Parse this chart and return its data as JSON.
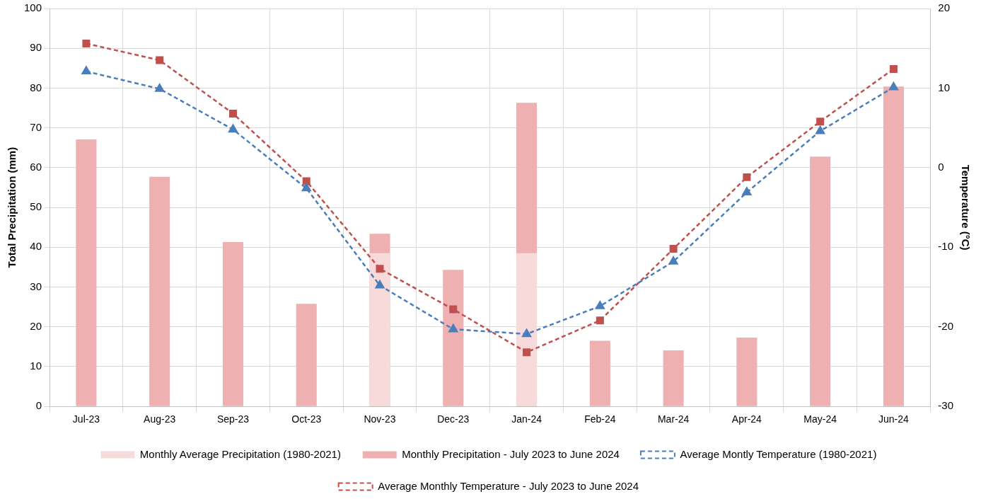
{
  "chart_data": {
    "type": "bar",
    "xlabel": null,
    "ylabel": "Total Precipitation (mm)",
    "y2label": "Temperature (°C)",
    "categories": [
      "Jul-23",
      "Aug-23",
      "Sep-23",
      "Oct-23",
      "Nov-23",
      "Dec-23",
      "Jan-24",
      "Feb-24",
      "Mar-24",
      "Apr-24",
      "May-24",
      "Jun-24"
    ],
    "series": [
      {
        "name": "Monthly Average Precipitation (1980-2021)",
        "color": "#f7dada",
        "values": [
          null,
          null,
          null,
          null,
          38.5,
          null,
          38.5,
          null,
          null,
          null,
          null,
          null
        ]
      },
      {
        "name": "Monthly Precipitation - July 2023 to June 2024",
        "color": "#eeb0b0",
        "values": [
          67.1,
          57.7,
          41.3,
          25.8,
          43.4,
          34.3,
          76.3,
          16.5,
          14.1,
          17.3,
          62.8,
          80.4
        ]
      },
      {
        "name": "Average Montly Temperature (1980-2021)",
        "type": "line",
        "axis": "y2",
        "color": "#4a7ebb",
        "marker": "triangle",
        "line_style": "dashed",
        "values": [
          12.1,
          9.9,
          4.8,
          -2.6,
          -14.8,
          -20.3,
          -20.9,
          -17.4,
          -11.8,
          -3.1,
          4.6,
          10.1
        ]
      },
      {
        "name": "Average Monthly Temperature - July 2023 to June 2024",
        "type": "line",
        "axis": "y2",
        "color": "#c0504d",
        "marker": "square",
        "line_style": "dashed",
        "values": [
          15.6,
          13.5,
          6.8,
          -1.7,
          -12.7,
          -17.8,
          -23.2,
          -19.2,
          -10.2,
          -1.2,
          5.8,
          12.4
        ]
      }
    ],
    "ylim": [
      0,
      100
    ],
    "yticks": [
      0,
      10,
      20,
      30,
      40,
      50,
      60,
      70,
      80,
      90,
      100
    ],
    "y2lim": [
      -30,
      20
    ],
    "y2ticks": [
      -30,
      -20,
      -10,
      0,
      10,
      20
    ],
    "grid": true,
    "legend": "bottom"
  }
}
